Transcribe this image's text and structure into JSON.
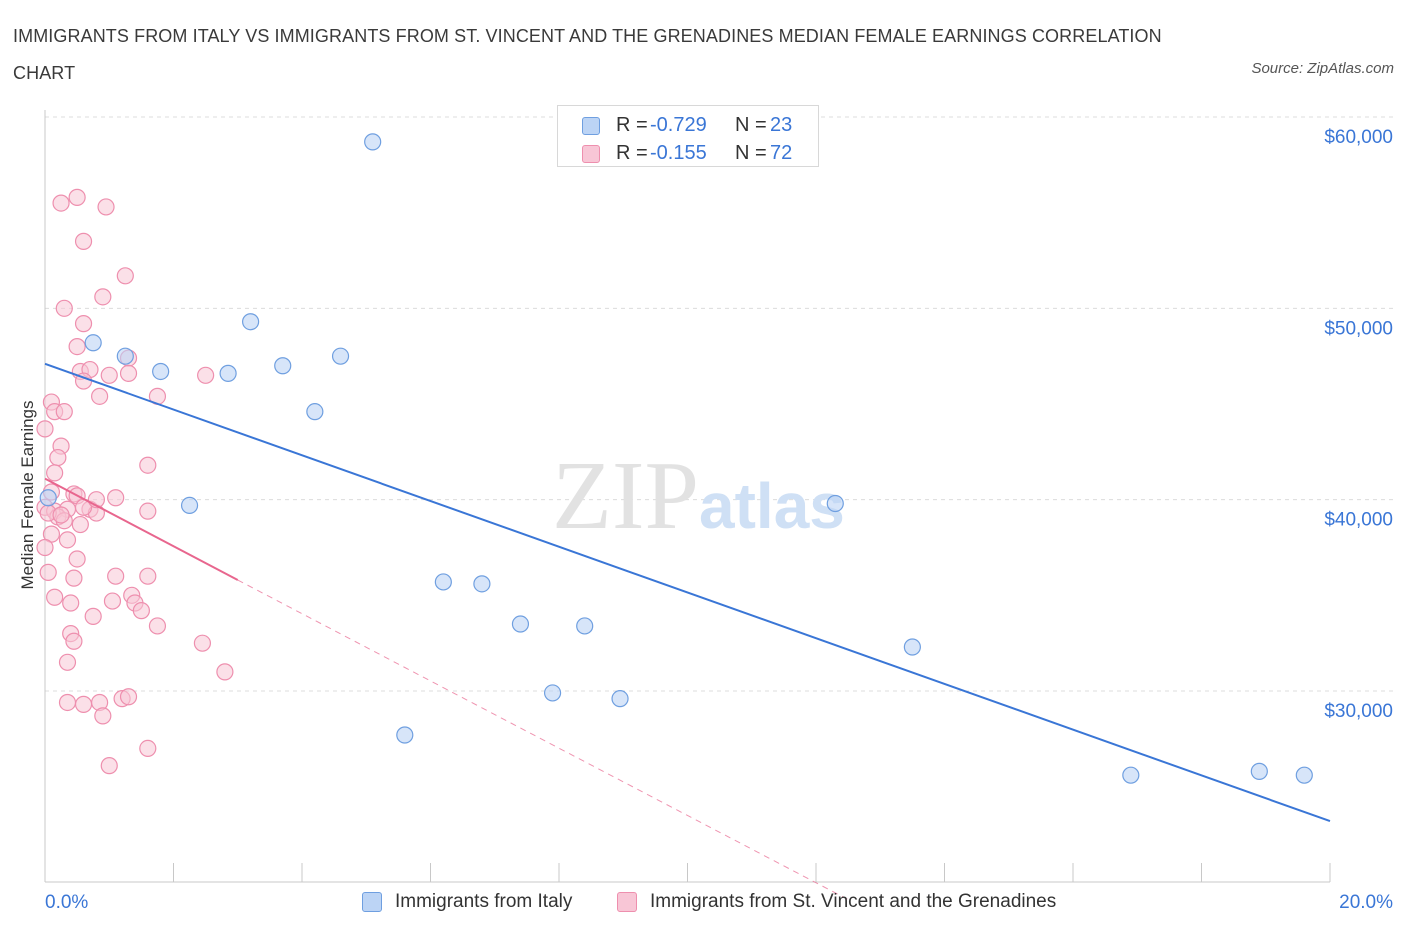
{
  "header": {
    "title": "IMMIGRANTS FROM ITALY VS IMMIGRANTS FROM ST. VINCENT AND THE GRENADINES MEDIAN FEMALE EARNINGS CORRELATION CHART",
    "source": "Source: ZipAtlas.com"
  },
  "legend_top": {
    "rows": [
      {
        "r_label": "R =",
        "r_value": "-0.729",
        "n_label": "N =",
        "n_value": "23"
      },
      {
        "r_label": "R =",
        "r_value": "-0.155",
        "n_label": "N =",
        "n_value": "72"
      }
    ]
  },
  "legend_bottom": {
    "items": [
      "Immigrants from Italy",
      "Immigrants from St. Vincent and the Grenadines"
    ]
  },
  "colors": {
    "blue": "#3a76d6",
    "blue_fill": "#bcd4f5",
    "blue_stroke": "#6f9fe0",
    "pink": "#e8668e",
    "pink_fill": "#f8c6d6",
    "pink_stroke": "#ee8fae",
    "grid": "#dcdcdc",
    "tick_label": "#3a76d6"
  },
  "chart_data": {
    "type": "scatter",
    "title": "IMMIGRANTS FROM ITALY VS IMMIGRANTS FROM ST. VINCENT AND THE GRENADINES MEDIAN FEMALE EARNINGS CORRELATION CHART",
    "xlabel": "",
    "ylabel": "Median Female Earnings",
    "xlim": [
      0,
      20
    ],
    "ylim": [
      20000,
      62000
    ],
    "x_tick_labels": [
      "0.0%",
      "20.0%"
    ],
    "y_ticks": [
      30000,
      40000,
      50000,
      60000
    ],
    "y_tick_labels": [
      "$30,000",
      "$40,000",
      "$50,000",
      "$60,000"
    ],
    "watermark": "ZIPatlas",
    "series": [
      {
        "name": "Immigrants from Italy",
        "R": -0.729,
        "N": 23,
        "trend": {
          "x": [
            0,
            20
          ],
          "y": [
            47100,
            23200
          ]
        },
        "points": [
          [
            0.05,
            40100
          ],
          [
            0.75,
            48200
          ],
          [
            1.25,
            47500
          ],
          [
            1.8,
            46700
          ],
          [
            2.25,
            39700
          ],
          [
            2.85,
            46600
          ],
          [
            3.2,
            49300
          ],
          [
            3.7,
            47000
          ],
          [
            4.2,
            44600
          ],
          [
            4.6,
            47500
          ],
          [
            5.1,
            58700
          ],
          [
            5.6,
            27700
          ],
          [
            6.2,
            35700
          ],
          [
            6.8,
            35600
          ],
          [
            7.4,
            33500
          ],
          [
            7.9,
            29900
          ],
          [
            8.4,
            33400
          ],
          [
            8.95,
            29600
          ],
          [
            12.3,
            39800
          ],
          [
            13.5,
            32300
          ],
          [
            16.9,
            25600
          ],
          [
            18.9,
            25800
          ],
          [
            19.6,
            25600
          ]
        ]
      },
      {
        "name": "Immigrants from St. Vincent and the Grenadines",
        "R": -0.155,
        "N": 72,
        "trend_solid": {
          "x": [
            0,
            3.0
          ],
          "y": [
            41100,
            35800
          ]
        },
        "trend_dashed": {
          "x": [
            3.0,
            12.5
          ],
          "y": [
            35800,
            19100
          ]
        },
        "points": [
          [
            0.25,
            55500
          ],
          [
            0.5,
            55800
          ],
          [
            0.95,
            55300
          ],
          [
            0.6,
            53500
          ],
          [
            1.25,
            51700
          ],
          [
            0.9,
            50600
          ],
          [
            0.3,
            50000
          ],
          [
            0.6,
            49200
          ],
          [
            0.5,
            48000
          ],
          [
            1.3,
            47400
          ],
          [
            0.55,
            46700
          ],
          [
            0.7,
            46800
          ],
          [
            1.0,
            46500
          ],
          [
            1.3,
            46600
          ],
          [
            2.5,
            46500
          ],
          [
            0.6,
            46200
          ],
          [
            0.85,
            45400
          ],
          [
            1.75,
            45400
          ],
          [
            0.1,
            45100
          ],
          [
            0.15,
            44600
          ],
          [
            0.3,
            44600
          ],
          [
            0.0,
            43700
          ],
          [
            0.25,
            42800
          ],
          [
            0.2,
            42200
          ],
          [
            1.6,
            41800
          ],
          [
            0.15,
            41400
          ],
          [
            0.1,
            40400
          ],
          [
            0.45,
            40300
          ],
          [
            0.5,
            40200
          ],
          [
            1.1,
            40100
          ],
          [
            0.0,
            39600
          ],
          [
            0.15,
            39400
          ],
          [
            0.35,
            39500
          ],
          [
            0.7,
            39500
          ],
          [
            0.8,
            39300
          ],
          [
            1.6,
            39400
          ],
          [
            0.2,
            39100
          ],
          [
            0.3,
            38900
          ],
          [
            0.55,
            38700
          ],
          [
            0.1,
            38200
          ],
          [
            0.35,
            37900
          ],
          [
            0.0,
            37500
          ],
          [
            0.5,
            36900
          ],
          [
            0.05,
            36200
          ],
          [
            1.1,
            36000
          ],
          [
            1.6,
            36000
          ],
          [
            0.45,
            35900
          ],
          [
            0.15,
            34900
          ],
          [
            1.35,
            35000
          ],
          [
            1.4,
            34600
          ],
          [
            0.4,
            34600
          ],
          [
            1.05,
            34700
          ],
          [
            0.75,
            33900
          ],
          [
            1.5,
            34200
          ],
          [
            1.75,
            33400
          ],
          [
            0.4,
            33000
          ],
          [
            0.45,
            32600
          ],
          [
            2.45,
            32500
          ],
          [
            0.35,
            31500
          ],
          [
            2.8,
            31000
          ],
          [
            0.35,
            29400
          ],
          [
            0.6,
            29300
          ],
          [
            0.85,
            29400
          ],
          [
            1.2,
            29600
          ],
          [
            1.3,
            29700
          ],
          [
            0.9,
            28700
          ],
          [
            1.6,
            27000
          ],
          [
            1.0,
            26100
          ],
          [
            0.05,
            39300
          ],
          [
            0.6,
            39600
          ],
          [
            0.25,
            39200
          ],
          [
            0.8,
            40000
          ]
        ]
      }
    ]
  }
}
